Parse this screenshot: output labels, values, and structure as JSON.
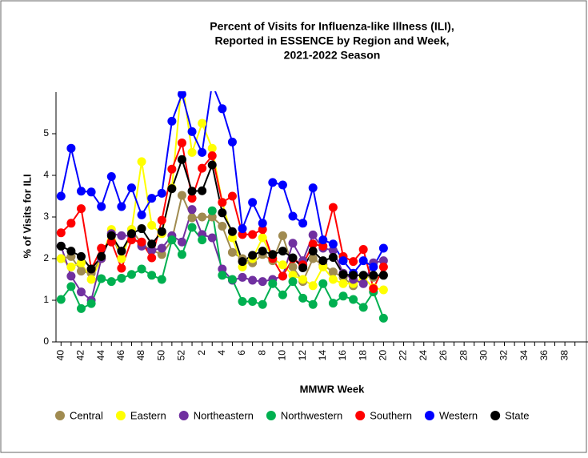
{
  "chart_data": {
    "type": "line",
    "title": [
      "Percent of Visits for Influenza-like Illness (ILI),",
      "Reported in ESSENCE by Region and Week,",
      "2021-2022 Season"
    ],
    "x_label": "MMWR Week",
    "y_label": "% of Visits for ILI",
    "categories": [
      40,
      null,
      42,
      null,
      44,
      null,
      46,
      null,
      48,
      null,
      50,
      null,
      52,
      null,
      2,
      null,
      4,
      null,
      6,
      null,
      8,
      null,
      10,
      null,
      12,
      null,
      14,
      null,
      16,
      null,
      18,
      null,
      20,
      null,
      22,
      null,
      24,
      null,
      26,
      null,
      28,
      null,
      30,
      null,
      32,
      null,
      34,
      null,
      36,
      null,
      38,
      null
    ],
    "ylim": [
      0,
      6
    ],
    "yticks": [
      0,
      1,
      2,
      3,
      4,
      5
    ],
    "series": [
      {
        "name": "Central",
        "color": "#a08b50",
        "values": [
          2.0,
          2.05,
          1.7,
          1.65,
          2.0,
          2.6,
          2.0,
          2.7,
          2.35,
          2.2,
          2.1,
          2.45,
          3.52,
          2.98,
          3.0,
          3.0,
          2.78,
          2.15,
          2.0,
          1.9,
          2.1,
          1.95,
          2.55,
          1.8,
          1.45,
          2.0,
          1.85,
          1.68,
          1.55,
          1.35,
          1.58,
          1.55,
          1.6,
          null,
          null,
          null,
          null,
          null,
          null,
          null,
          null,
          null,
          null,
          null,
          null,
          null,
          null,
          null,
          null,
          null,
          null,
          null
        ]
      },
      {
        "name": "Eastern",
        "color": "#ffff00",
        "values": [
          2.0,
          1.8,
          1.9,
          1.5,
          2.0,
          2.7,
          2.0,
          2.7,
          4.33,
          2.8,
          2.6,
          3.7,
          6.3,
          4.55,
          5.25,
          4.65,
          3.35,
          2.5,
          1.8,
          2.0,
          2.5,
          2.0,
          1.85,
          1.6,
          1.5,
          1.35,
          1.8,
          1.5,
          1.4,
          1.4,
          1.55,
          1.3,
          1.25,
          null,
          null,
          null,
          null,
          null,
          null,
          null,
          null,
          null,
          null,
          null,
          null,
          null,
          null,
          null,
          null,
          null,
          null,
          null
        ]
      },
      {
        "name": "Northeastern",
        "color": "#7030a0",
        "values": [
          2.3,
          1.58,
          1.2,
          1.0,
          2.0,
          2.6,
          2.55,
          2.55,
          2.3,
          2.2,
          2.25,
          2.55,
          2.4,
          3.18,
          2.58,
          2.5,
          1.75,
          1.48,
          1.55,
          1.48,
          1.45,
          1.5,
          1.58,
          2.37,
          1.95,
          2.57,
          2.25,
          2.2,
          1.65,
          1.5,
          1.4,
          1.9,
          1.95,
          null,
          null,
          null,
          null,
          null,
          null,
          null,
          null,
          null,
          null,
          null,
          null,
          null,
          null,
          null,
          null,
          null,
          null,
          null
        ]
      },
      {
        "name": "Northwestern",
        "color": "#00b050",
        "values": [
          1.02,
          1.33,
          0.8,
          0.92,
          1.52,
          1.45,
          1.53,
          1.62,
          1.75,
          1.6,
          1.5,
          2.45,
          2.1,
          2.75,
          2.45,
          3.15,
          1.6,
          1.5,
          0.97,
          0.97,
          0.9,
          1.4,
          1.13,
          1.45,
          1.05,
          0.9,
          1.4,
          0.93,
          1.1,
          1.02,
          0.83,
          1.2,
          0.57,
          null,
          null,
          null,
          null,
          null,
          null,
          null,
          null,
          null,
          null,
          null,
          null,
          null,
          null,
          null,
          null,
          null,
          null,
          null
        ]
      },
      {
        "name": "Southern",
        "color": "#ff0000",
        "values": [
          2.62,
          2.85,
          3.2,
          1.75,
          2.25,
          2.4,
          1.77,
          2.45,
          2.4,
          2.02,
          2.92,
          4.15,
          4.78,
          3.45,
          4.17,
          4.47,
          3.35,
          3.5,
          2.58,
          2.58,
          2.7,
          2.0,
          1.58,
          2.0,
          1.85,
          2.35,
          2.3,
          3.23,
          2.05,
          1.93,
          2.22,
          1.28,
          1.8,
          null,
          null,
          null,
          null,
          null,
          null,
          null,
          null,
          null,
          null,
          null,
          null,
          null,
          null,
          null,
          null,
          null,
          null,
          null
        ]
      },
      {
        "name": "Western",
        "color": "#0000ff",
        "values": [
          3.5,
          4.65,
          3.62,
          3.6,
          3.25,
          3.97,
          3.25,
          3.7,
          3.05,
          3.45,
          3.57,
          5.3,
          5.95,
          5.05,
          4.55,
          6.2,
          5.6,
          4.8,
          2.72,
          3.35,
          2.85,
          3.83,
          3.77,
          3.02,
          2.85,
          3.7,
          2.45,
          2.35,
          1.95,
          1.65,
          1.95,
          1.8,
          2.25,
          null,
          null,
          null,
          null,
          null,
          null,
          null,
          null,
          null,
          null,
          null,
          null,
          null,
          null,
          null,
          null,
          null,
          null,
          null
        ]
      },
      {
        "name": "State",
        "color": "#000000",
        "values": [
          2.3,
          2.18,
          2.05,
          1.75,
          2.05,
          2.55,
          2.18,
          2.6,
          2.72,
          2.35,
          2.65,
          3.68,
          4.38,
          3.62,
          3.63,
          4.25,
          3.1,
          2.65,
          1.93,
          2.08,
          2.18,
          2.1,
          2.18,
          2.02,
          1.78,
          2.18,
          1.95,
          2.03,
          1.62,
          1.6,
          1.6,
          1.6,
          1.6,
          null,
          null,
          null,
          null,
          null,
          null,
          null,
          null,
          null,
          null,
          null,
          null,
          null,
          null,
          null,
          null,
          null,
          null,
          null
        ]
      }
    ]
  }
}
